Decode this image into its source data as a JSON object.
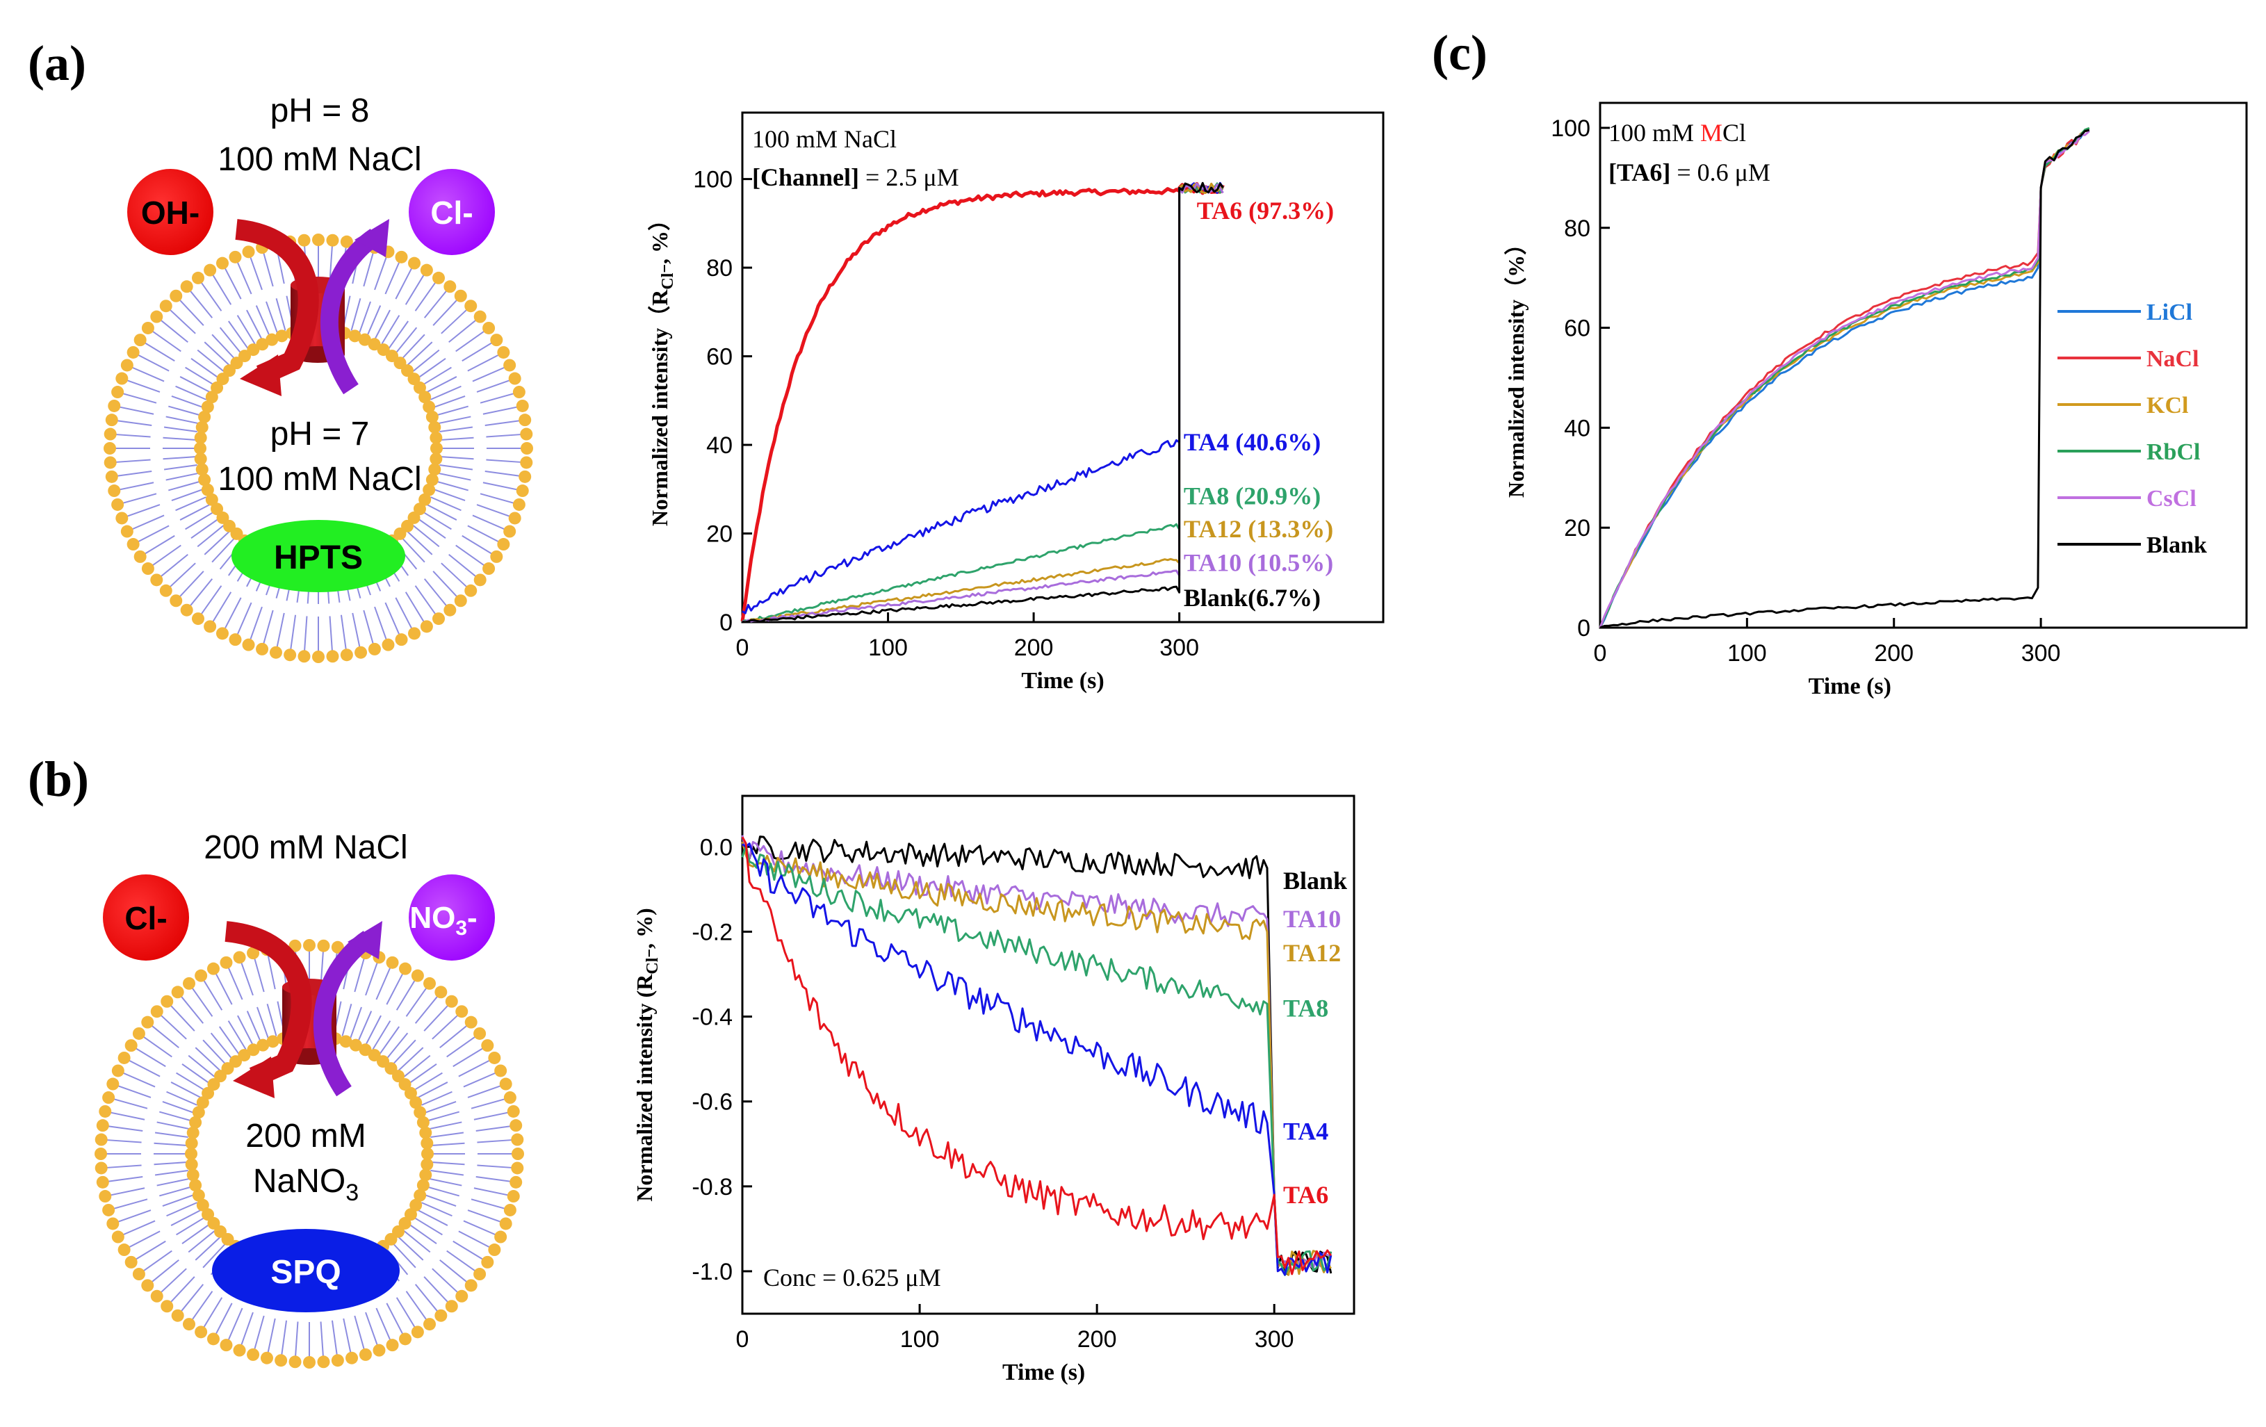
{
  "panels": {
    "a": {
      "label": "(a)",
      "diagram": {
        "outside_line1": "pH = 8",
        "outside_line2": "100 mM NaCl",
        "left_ion": "OH-",
        "right_ion": "Cl-",
        "inside_line1": "pH = 7",
        "inside_line2": "100 mM NaCl",
        "dye": "HPTS"
      }
    },
    "b": {
      "label": "(b)",
      "diagram": {
        "outside_line1": "200 mM NaCl",
        "left_ion": "Cl-",
        "right_ion_main": "NO",
        "right_ion_sub": "3",
        "right_ion_sup": "-",
        "inside_line1": "200 mM",
        "inside_line2_main": "NaNO",
        "inside_line2_sub": "3",
        "dye": "SPQ"
      }
    },
    "c": {
      "label": "(c)"
    }
  },
  "colors": {
    "red": "#e8141c",
    "blue": "#1414e6",
    "green": "#2ea36b",
    "gold": "#c8961e",
    "purple": "#a86cdc",
    "black": "#000000",
    "c_blue": "#1f78d8",
    "c_red": "#e8323c",
    "c_gold": "#d19a1e",
    "c_green": "#2aa05a",
    "c_purple": "#c070e0",
    "lipid_head": "#f2b63a",
    "lipid_tail": "#8c8ce0",
    "channel": "#b0141c"
  },
  "chart_data": [
    {
      "id": "a",
      "type": "line",
      "annotation_line1": "100 mM NaCl",
      "annotation_line2_bold": "[Channel]",
      "annotation_line2_rest": " = 2.5 μM",
      "xlabel": "Time (s)",
      "ylabel": "Normalized intensity（R",
      "ylabel_sub": "Cl⁻",
      "ylabel_end": ", %）",
      "xlim": [
        0,
        440
      ],
      "ylim": [
        0,
        115
      ],
      "xticks": [
        0,
        100,
        200,
        300
      ],
      "yticks": [
        0,
        20,
        40,
        60,
        80,
        100
      ],
      "series": [
        {
          "name": "TA6 (97.3%)",
          "color": "red",
          "final": 97.3,
          "shape": "exp",
          "tau": 40
        },
        {
          "name": "TA4 (40.6%)",
          "color": "blue",
          "final": 40.6,
          "shape": "linear",
          "tau": 0
        },
        {
          "name": "TA8 (20.9%)",
          "color": "green",
          "final": 20.9,
          "shape": "linear",
          "tau": 0
        },
        {
          "name": "TA12 (13.3%)",
          "color": "gold",
          "final": 13.3,
          "shape": "linear",
          "tau": 0
        },
        {
          "name": "TA10 (10.5%)",
          "color": "purple",
          "final": 10.5,
          "shape": "linear",
          "tau": 0
        },
        {
          "name": "Blank(6.7%)",
          "color": "black",
          "final": 6.7,
          "shape": "linear",
          "tau": 0
        }
      ]
    },
    {
      "id": "b",
      "type": "line",
      "annotation": "Conc = 0.625 μM",
      "xlabel": "Time (s)",
      "ylabel": "Normalized intensity (R",
      "ylabel_sub": "Cl⁻",
      "ylabel_end": ", %)",
      "xlim": [
        0,
        345
      ],
      "ylim": [
        -1.1,
        0.12
      ],
      "xticks": [
        0,
        100,
        200,
        300
      ],
      "yticks": [
        0.0,
        -0.2,
        -0.4,
        -0.6,
        -0.8,
        -1.0
      ],
      "series": [
        {
          "name": "Blank",
          "color": "black",
          "final": -0.05
        },
        {
          "name": "TA10",
          "color": "purple",
          "final": -0.17
        },
        {
          "name": "TA12",
          "color": "gold",
          "final": -0.2
        },
        {
          "name": "TA8",
          "color": "green",
          "final": -0.37
        },
        {
          "name": "TA4",
          "color": "blue",
          "final": -0.65
        },
        {
          "name": "TA6",
          "color": "red",
          "final": -0.9
        }
      ]
    },
    {
      "id": "c",
      "type": "line",
      "annotation_line1_pre": "100 mM ",
      "annotation_line1_red": "M",
      "annotation_line1_post": "Cl",
      "annotation_line2_bold": "[TA6]",
      "annotation_line2_rest": " = 0.6 μM",
      "xlabel": "Time (s)",
      "ylabel": "Normalized intensity（%）",
      "xlim": [
        0,
        440
      ],
      "ylim": [
        0,
        105
      ],
      "xticks": [
        0,
        100,
        200,
        300
      ],
      "yticks": [
        0,
        20,
        40,
        60,
        80,
        100
      ],
      "series": [
        {
          "name": "LiCl",
          "color": "c_blue",
          "final": 70
        },
        {
          "name": "NaCl",
          "color": "c_red",
          "final": 73
        },
        {
          "name": "KCl",
          "color": "c_gold",
          "final": 71
        },
        {
          "name": "RbCl",
          "color": "c_green",
          "final": 71.5
        },
        {
          "name": "CsCl",
          "color": "c_purple",
          "final": 72
        },
        {
          "name": "Blank",
          "color": "black",
          "final": 6
        }
      ]
    }
  ]
}
